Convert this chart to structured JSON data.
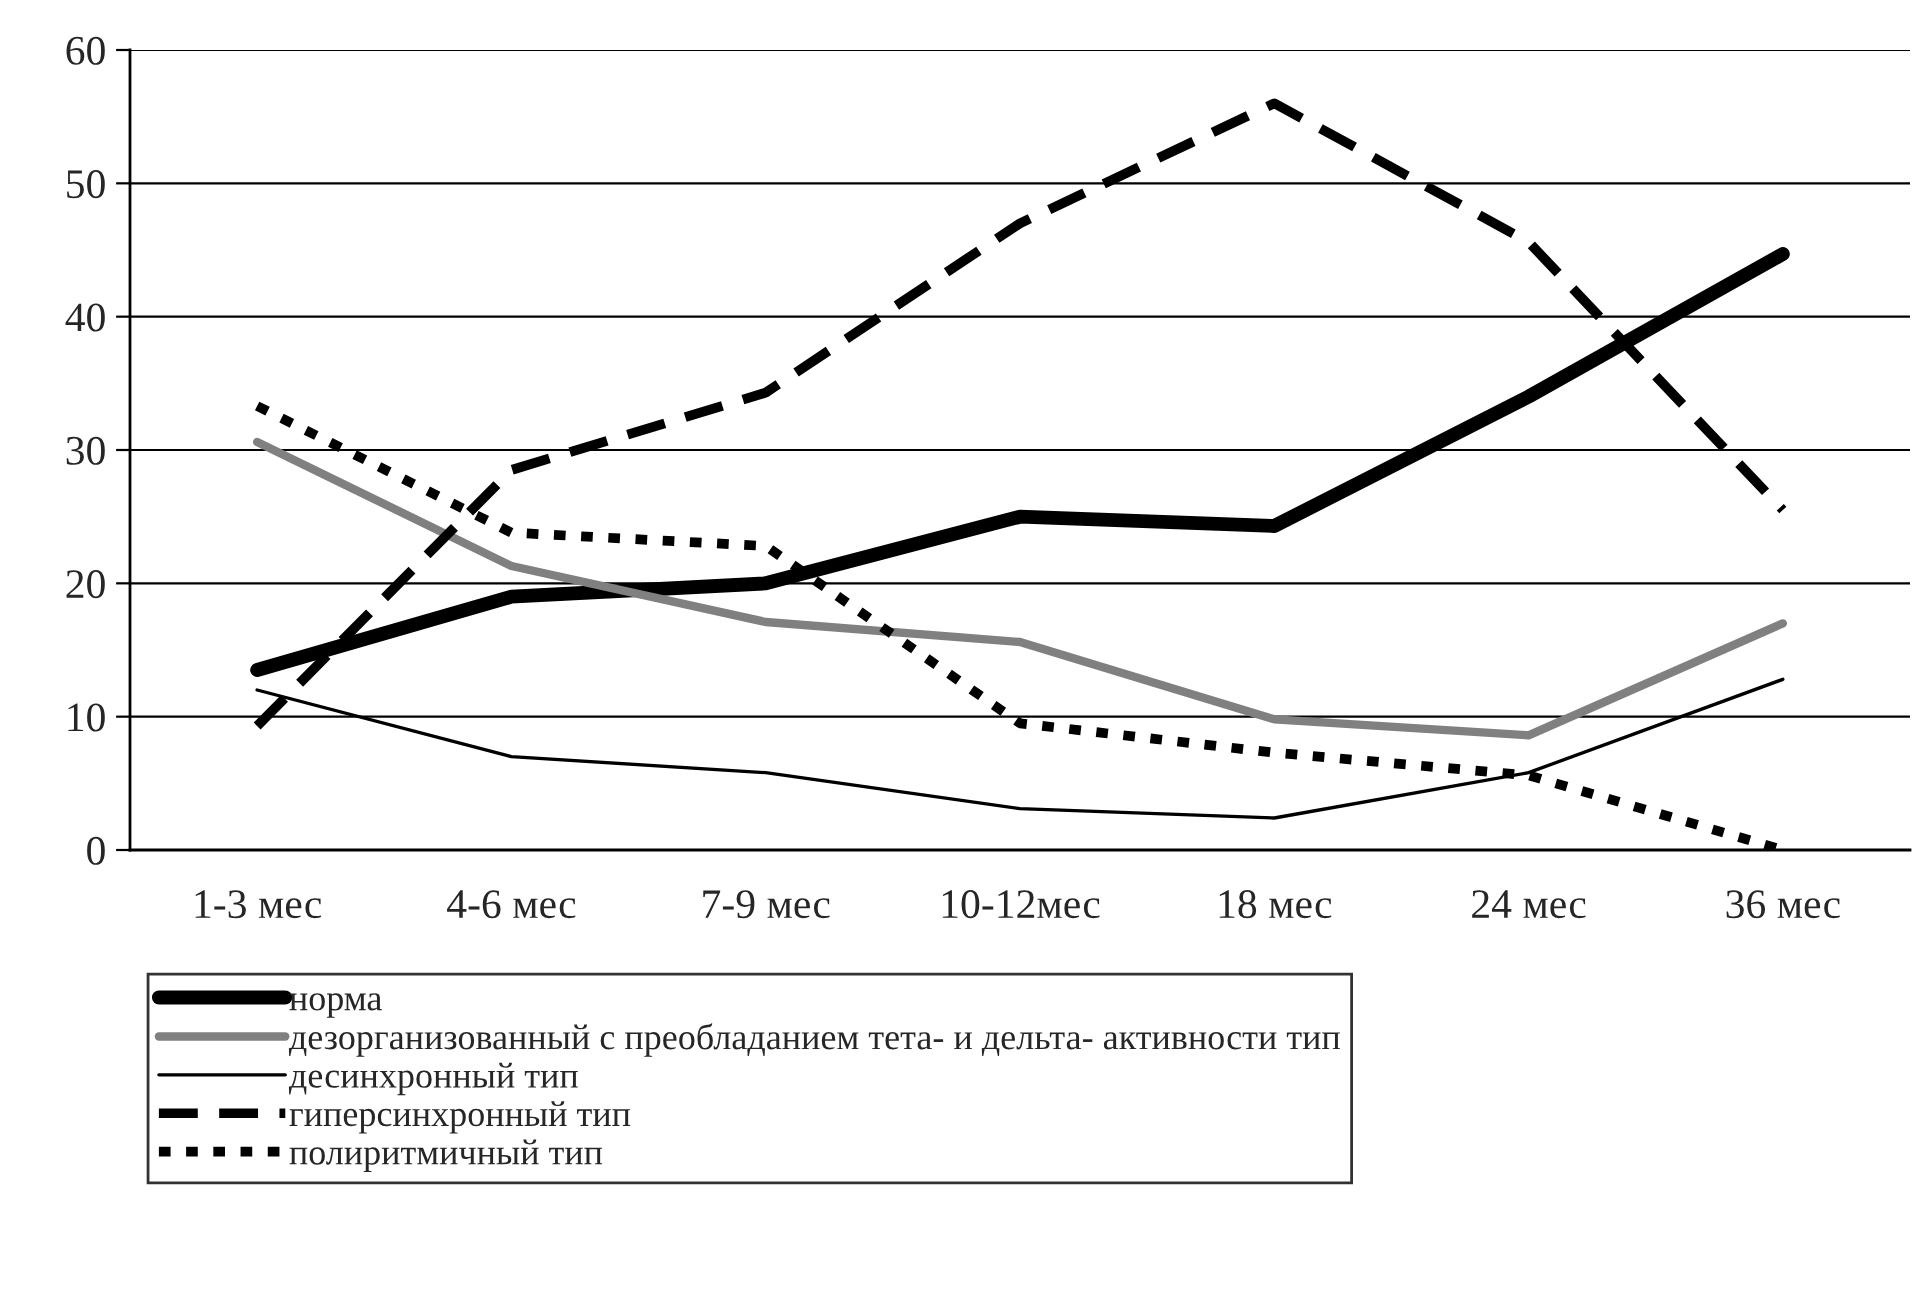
{
  "chart_data": {
    "type": "line",
    "categories": [
      "1-3 мес",
      "4-6 мес",
      "7-9 мес",
      "10-12мес",
      "18 мес",
      "24 мес",
      "36 мес"
    ],
    "ylim": [
      0,
      60
    ],
    "yticks": [
      0,
      10,
      20,
      30,
      40,
      50,
      60
    ],
    "grid": "y",
    "legend": "bottom",
    "marker": "none",
    "series": [
      {
        "name": "норма",
        "color": "#000000",
        "line_style": "solid",
        "values": [
          13.5,
          19,
          20,
          25,
          24.3,
          34,
          44.7
        ]
      },
      {
        "name": "дезорганизованный с преобладанием тета- и дельта- активности тип",
        "color": "#808080",
        "line_style": "solid",
        "values": [
          30.6,
          21.3,
          17.1,
          15.6,
          9.8,
          8.6,
          17
        ]
      },
      {
        "name": "десинхронный тип",
        "color": "#000000",
        "line_style": "solid",
        "values": [
          12,
          7,
          5.8,
          3.1,
          2.4,
          5.8,
          12.8
        ]
      },
      {
        "name": "гиперсинхронный тип",
        "color": "#000000",
        "line_style": "dashed",
        "values": [
          9.3,
          28.5,
          34.3,
          47,
          56,
          45.6,
          25.5
        ]
      },
      {
        "name": "полиритмичный тип",
        "color": "#000000",
        "line_style": "dotted",
        "values": [
          33.3,
          23.8,
          22.8,
          9.5,
          7.3,
          5.6,
          0
        ]
      }
    ]
  }
}
